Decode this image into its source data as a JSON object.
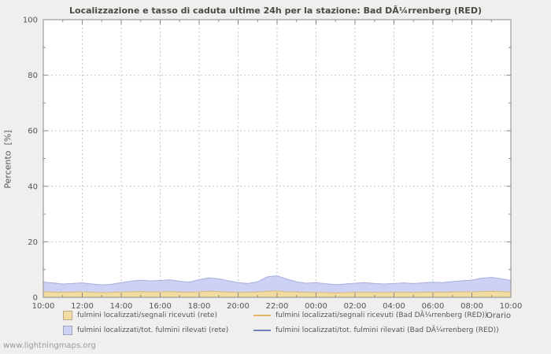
{
  "page": {
    "background": "#f0efed",
    "watermark": "www.lightningmaps.org"
  },
  "chart_data": {
    "type": "area",
    "title": "Localizzazione e tasso di caduta ultime 24h per la stazione: Bad DÃ¼rrenberg (RED)",
    "ylabel": "Percento  [%]",
    "xlabel": "Orario",
    "ylim": [
      0,
      100
    ],
    "y_major_ticks": [
      0,
      20,
      40,
      60,
      80,
      100
    ],
    "y_minor_step": 10,
    "grid": true,
    "legend_position": "bottom",
    "x_tick_labels": [
      "10:00",
      "12:00",
      "14:00",
      "16:00",
      "18:00",
      "20:00",
      "22:00",
      "00:00",
      "02:00",
      "04:00",
      "06:00",
      "08:00",
      "10:00"
    ],
    "series": [
      {
        "name": "fulmini localizzati/segnali ricevuti (rete)",
        "type": "area",
        "color": "#f2dca2",
        "edge": "#d9b878",
        "values": [
          2.0,
          1.9,
          1.8,
          1.9,
          2.0,
          1.8,
          1.7,
          1.8,
          1.9,
          2.0,
          2.1,
          2.0,
          2.0,
          2.1,
          1.9,
          1.8,
          2.0,
          2.2,
          2.1,
          1.9,
          1.8,
          1.8,
          1.9,
          2.2,
          2.3,
          2.0,
          1.9,
          1.8,
          1.8,
          1.7,
          1.6,
          1.7,
          1.8,
          1.8,
          1.8,
          1.7,
          1.8,
          1.8,
          1.8,
          1.8,
          1.9,
          1.8,
          1.9,
          2.0,
          2.0,
          2.1,
          2.2,
          2.1,
          1.9
        ]
      },
      {
        "name": "fulmini localizzati/tot. fulmini rilevati (rete)",
        "type": "area",
        "color": "#cdd1f3",
        "edge": "#a8aee0",
        "values": [
          5.5,
          5.2,
          4.8,
          5.0,
          5.2,
          4.8,
          4.5,
          4.7,
          5.3,
          5.8,
          6.2,
          5.9,
          6.1,
          6.3,
          5.8,
          5.5,
          6.4,
          7.0,
          6.7,
          6.0,
          5.3,
          5.0,
          5.6,
          7.4,
          7.8,
          6.6,
          5.6,
          5.1,
          5.3,
          4.9,
          4.6,
          4.8,
          5.1,
          5.3,
          5.0,
          4.8,
          5.0,
          5.2,
          5.0,
          5.2,
          5.5,
          5.3,
          5.7,
          6.0,
          6.2,
          6.9,
          7.2,
          6.7,
          6.1
        ]
      },
      {
        "name": "fulmini localizzati/segnali ricevuti (Bad DÃ¼rrenberg (RED))",
        "type": "line",
        "color": "#e2b566",
        "values": [
          0,
          0,
          0,
          0,
          0,
          0,
          0,
          0,
          0,
          0,
          0,
          0,
          0,
          0,
          0,
          0,
          0,
          0,
          0,
          0,
          0,
          0,
          0,
          0,
          0,
          0,
          0,
          0,
          0,
          0,
          0,
          0,
          0,
          0,
          0,
          0,
          0,
          0,
          0,
          0,
          0,
          0,
          0,
          0,
          0,
          0,
          0,
          0,
          0
        ]
      },
      {
        "name": "fulmini localizzati/tot. fulmini rilevati (Bad DÃ¼rrenberg (RED))",
        "type": "line",
        "color": "#7381b8",
        "values": [
          0,
          0,
          0,
          0,
          0,
          0,
          0,
          0,
          0,
          0,
          0,
          0,
          0,
          0,
          0,
          0,
          0,
          0,
          0,
          0,
          0,
          0,
          0,
          0,
          0,
          0,
          0,
          0,
          0,
          0,
          0,
          0,
          0,
          0,
          0,
          0,
          0,
          0,
          0,
          0,
          0,
          0,
          0,
          0,
          0,
          0,
          0,
          0,
          0
        ]
      }
    ]
  }
}
